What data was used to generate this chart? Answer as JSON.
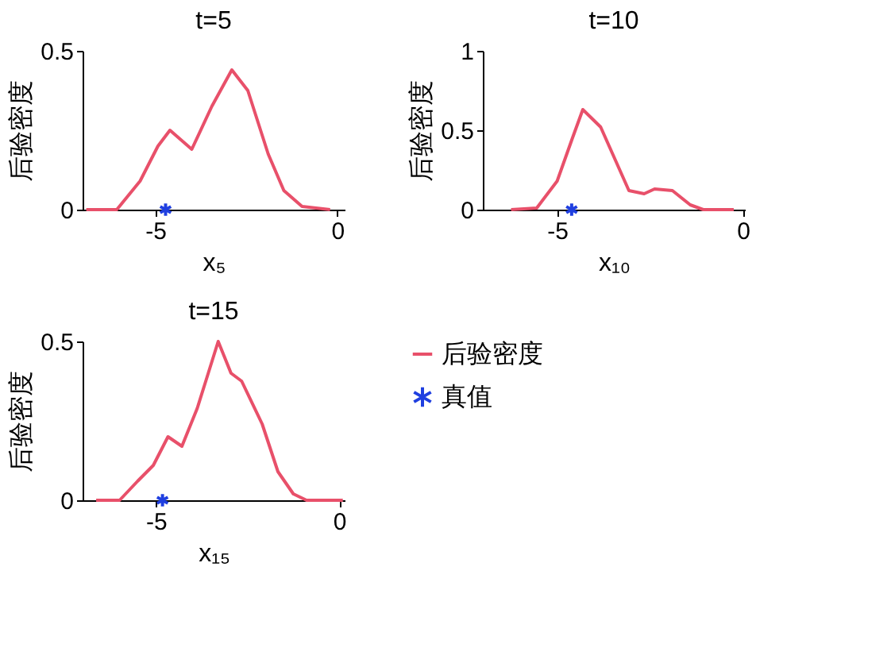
{
  "chart_data": [
    {
      "type": "line",
      "title": "t=5",
      "xlabel": "x₅",
      "ylabel": "后验密度",
      "xlim": [
        -7,
        0.2
      ],
      "ylim": [
        0,
        0.5
      ],
      "xticks": [
        -5,
        0
      ],
      "yticks": [
        0,
        0.5
      ],
      "line_style": "solid",
      "marker": "none",
      "series": [
        {
          "color": "#e8506a",
          "x": [
            -6.9,
            -6.06,
            -5.42,
            -4.93,
            -4.6,
            -4.0,
            -3.45,
            -2.9,
            -2.46,
            -1.9,
            -1.47,
            -0.97,
            -0.2
          ],
          "values": [
            0,
            0,
            0.09,
            0.2,
            0.25,
            0.19,
            0.325,
            0.44,
            0.375,
            0.175,
            0.06,
            0.01,
            0
          ]
        },
        {
          "type": "scatter",
          "marker": "cross",
          "color": "#1f3fe0",
          "x": [
            -4.72
          ],
          "values": [
            0
          ]
        }
      ]
    },
    {
      "type": "line",
      "title": "t=10",
      "xlabel": "x₁₀",
      "ylabel": "后验密度",
      "xlim": [
        -7,
        0.05
      ],
      "ylim": [
        0,
        1
      ],
      "xticks": [
        -5,
        0
      ],
      "yticks": [
        0,
        0.5,
        1
      ],
      "line_style": "solid",
      "marker": "none",
      "series": [
        {
          "color": "#e8506a",
          "x": [
            -6.24,
            -5.55,
            -5.0,
            -4.59,
            -4.31,
            -3.83,
            -3.07,
            -2.66,
            -2.38,
            -1.9,
            -1.42,
            -1.07,
            -0.25
          ],
          "values": [
            0,
            0.01,
            0.18,
            0.45,
            0.63,
            0.52,
            0.12,
            0.1,
            0.13,
            0.12,
            0.03,
            0,
            0
          ]
        },
        {
          "type": "scatter",
          "marker": "cross",
          "color": "#1f3fe0",
          "x": [
            -4.61
          ],
          "values": [
            0
          ]
        }
      ]
    },
    {
      "type": "line",
      "title": "t=15",
      "xlabel": "x₁₅",
      "ylabel": "后验密度",
      "xlim": [
        -7,
        0.15
      ],
      "ylim": [
        0,
        0.5
      ],
      "xticks": [
        -5,
        0
      ],
      "yticks": [
        0,
        0.5
      ],
      "line_style": "solid",
      "marker": "none",
      "legend": "right",
      "series": [
        {
          "name": "后验密度",
          "color": "#e8506a",
          "x": [
            -6.63,
            -5.99,
            -5.5,
            -5.07,
            -4.67,
            -4.29,
            -3.87,
            -3.3,
            -2.95,
            -2.66,
            -2.1,
            -1.67,
            -1.25,
            -0.89,
            0.1
          ],
          "values": [
            0,
            0,
            0.06,
            0.11,
            0.2,
            0.17,
            0.29,
            0.5,
            0.4,
            0.375,
            0.24,
            0.09,
            0.02,
            0,
            0
          ]
        },
        {
          "name": "真值",
          "type": "scatter",
          "marker": "cross",
          "color": "#1f3fe0",
          "x": [
            -4.82
          ],
          "values": [
            0
          ]
        }
      ]
    }
  ]
}
